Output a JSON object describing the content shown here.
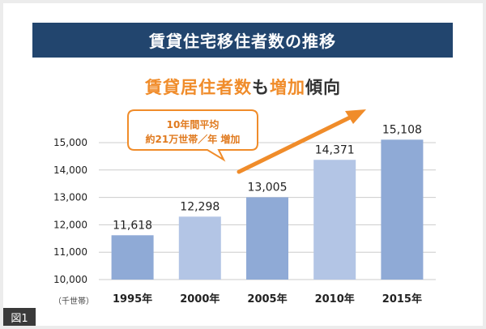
{
  "title": "賃貸住宅移住者数の推移",
  "subtitle": {
    "part1": "賃貸居住者数",
    "part2": "も",
    "part3": "増加",
    "part4": "傾向"
  },
  "annotation": {
    "line1": "10年間平均",
    "line2": "約21万世帯／年 増加"
  },
  "figure_tag": "図1",
  "colors": {
    "banner": "#22456e",
    "accent_orange": "#f08c2a",
    "bar_dark": "#8faad6",
    "bar_light": "#b3c5e5",
    "grid": "#cccccc"
  },
  "chart_data": {
    "type": "bar",
    "categories": [
      "1995年",
      "2000年",
      "2005年",
      "2010年",
      "2015年"
    ],
    "values": [
      11618,
      12298,
      13005,
      14371,
      15108
    ],
    "value_labels": [
      "11,618",
      "12,298",
      "13,005",
      "14,371",
      "15,108"
    ],
    "yticks": [
      "10,000",
      "11,000",
      "12,000",
      "13,000",
      "14,000",
      "15,000"
    ],
    "ylim": [
      10000,
      15000
    ],
    "ylabel_unit": "（千世帯）",
    "title": "賃貸居住者数も増加傾向",
    "grid": true,
    "trend_arrow": true
  }
}
